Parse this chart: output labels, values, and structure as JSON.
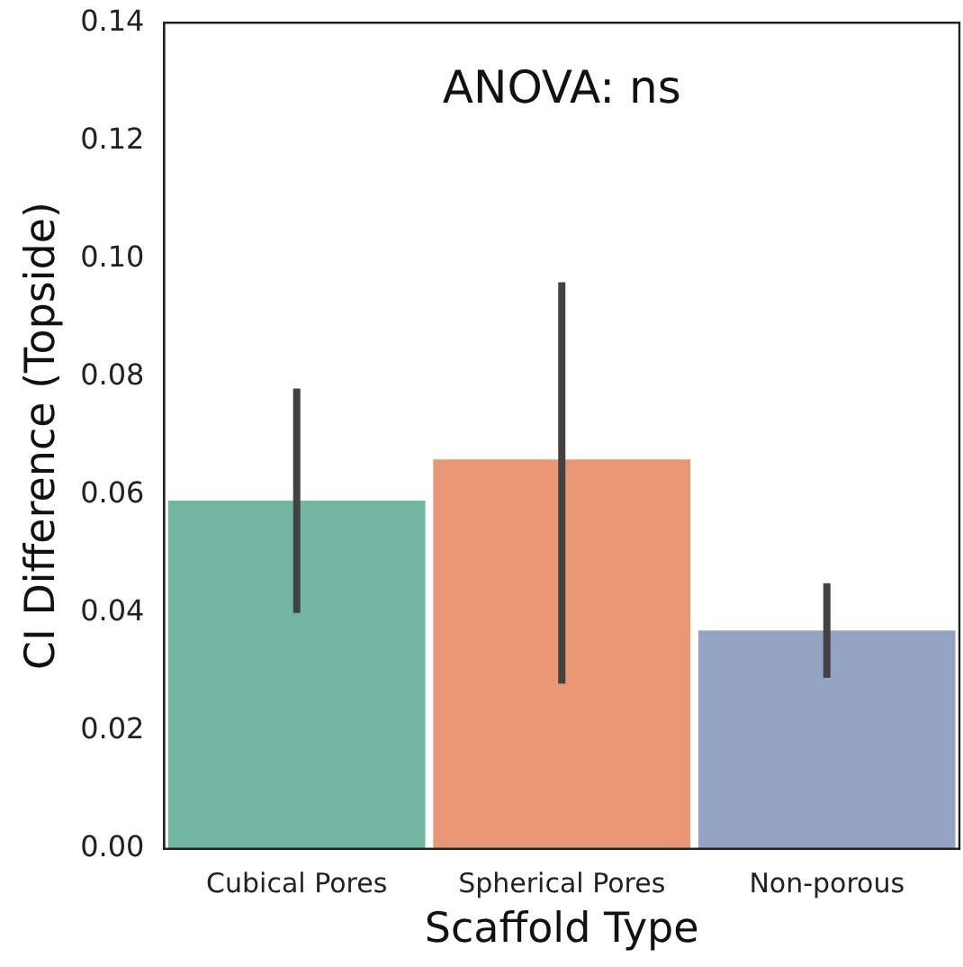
{
  "chart_data": {
    "type": "bar",
    "xlabel": "Scaffold Type",
    "ylabel": "CI Difference (Topside)",
    "annotations": [
      "ANOVA: ns"
    ],
    "categories": [
      "Cubical Pores",
      "Spherical Pores",
      "Non-porous"
    ],
    "values": [
      0.059,
      0.066,
      0.037
    ],
    "colors": [
      "#72b6a1",
      "#e99675",
      "#95a3c3"
    ],
    "errors": [
      [
        0.04,
        0.078
      ],
      [
        0.028,
        0.096
      ],
      [
        0.029,
        0.045
      ]
    ],
    "ylim": [
      0,
      0.14
    ],
    "yticks": [
      {
        "value": 0,
        "label": "0.00"
      },
      {
        "value": 0.02,
        "label": "0.02"
      },
      {
        "value": 0.04,
        "label": "0.04"
      },
      {
        "value": 0.06,
        "label": "0.06"
      },
      {
        "value": 0.08,
        "label": "0.08"
      },
      {
        "value": 0.1,
        "label": "0.10"
      },
      {
        "value": 0.12,
        "label": "0.12"
      },
      {
        "value": 0.14,
        "label": "0.14"
      }
    ],
    "grid": false,
    "legend": false
  }
}
